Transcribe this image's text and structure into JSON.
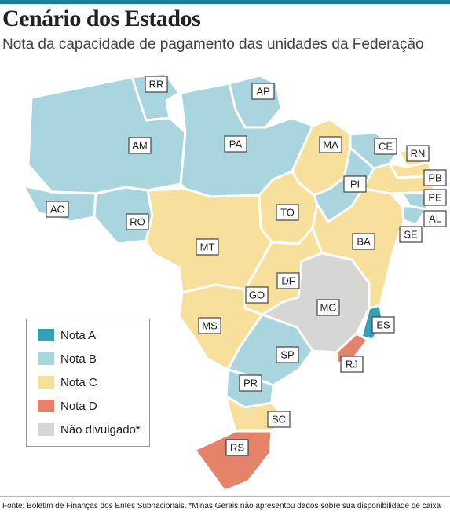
{
  "header": {
    "title": "Cenário dos Estados",
    "subtitle": "Nota da capacidade de pagamento das unidades da Federação"
  },
  "colors": {
    "A": "#3a9fb5",
    "B": "#a9d5de",
    "C": "#f7df9c",
    "D": "#e4826a",
    "N": "#d6d6d4",
    "topbar": "#1e7f96"
  },
  "legend": [
    {
      "grade": "A",
      "label": "Nota A"
    },
    {
      "grade": "B",
      "label": "Nota B"
    },
    {
      "grade": "C",
      "label": "Nota C"
    },
    {
      "grade": "D",
      "label": "Nota D"
    },
    {
      "grade": "N",
      "label": "Não divulgado*"
    }
  ],
  "states": [
    {
      "code": "RR",
      "grade": "B"
    },
    {
      "code": "AP",
      "grade": "B"
    },
    {
      "code": "AM",
      "grade": "B"
    },
    {
      "code": "PA",
      "grade": "B"
    },
    {
      "code": "MA",
      "grade": "C"
    },
    {
      "code": "CE",
      "grade": "B"
    },
    {
      "code": "RN",
      "grade": "C"
    },
    {
      "code": "PB",
      "grade": "C"
    },
    {
      "code": "PE",
      "grade": "C"
    },
    {
      "code": "AL",
      "grade": "B"
    },
    {
      "code": "SE",
      "grade": "B"
    },
    {
      "code": "PI",
      "grade": "B"
    },
    {
      "code": "AC",
      "grade": "B"
    },
    {
      "code": "RO",
      "grade": "B"
    },
    {
      "code": "TO",
      "grade": "C"
    },
    {
      "code": "BA",
      "grade": "C"
    },
    {
      "code": "MT",
      "grade": "C"
    },
    {
      "code": "DF",
      "grade": "C"
    },
    {
      "code": "GO",
      "grade": "C"
    },
    {
      "code": "MG",
      "grade": "N"
    },
    {
      "code": "MS",
      "grade": "C"
    },
    {
      "code": "ES",
      "grade": "A"
    },
    {
      "code": "SP",
      "grade": "B"
    },
    {
      "code": "RJ",
      "grade": "D"
    },
    {
      "code": "PR",
      "grade": "B"
    },
    {
      "code": "SC",
      "grade": "C"
    },
    {
      "code": "RS",
      "grade": "D"
    }
  ],
  "source": "Fonte: Boletim de Finanças dos Entes Subnacionais. *Minas Gerais não apresentou dados sobre sua disponibilidade de caixa"
}
